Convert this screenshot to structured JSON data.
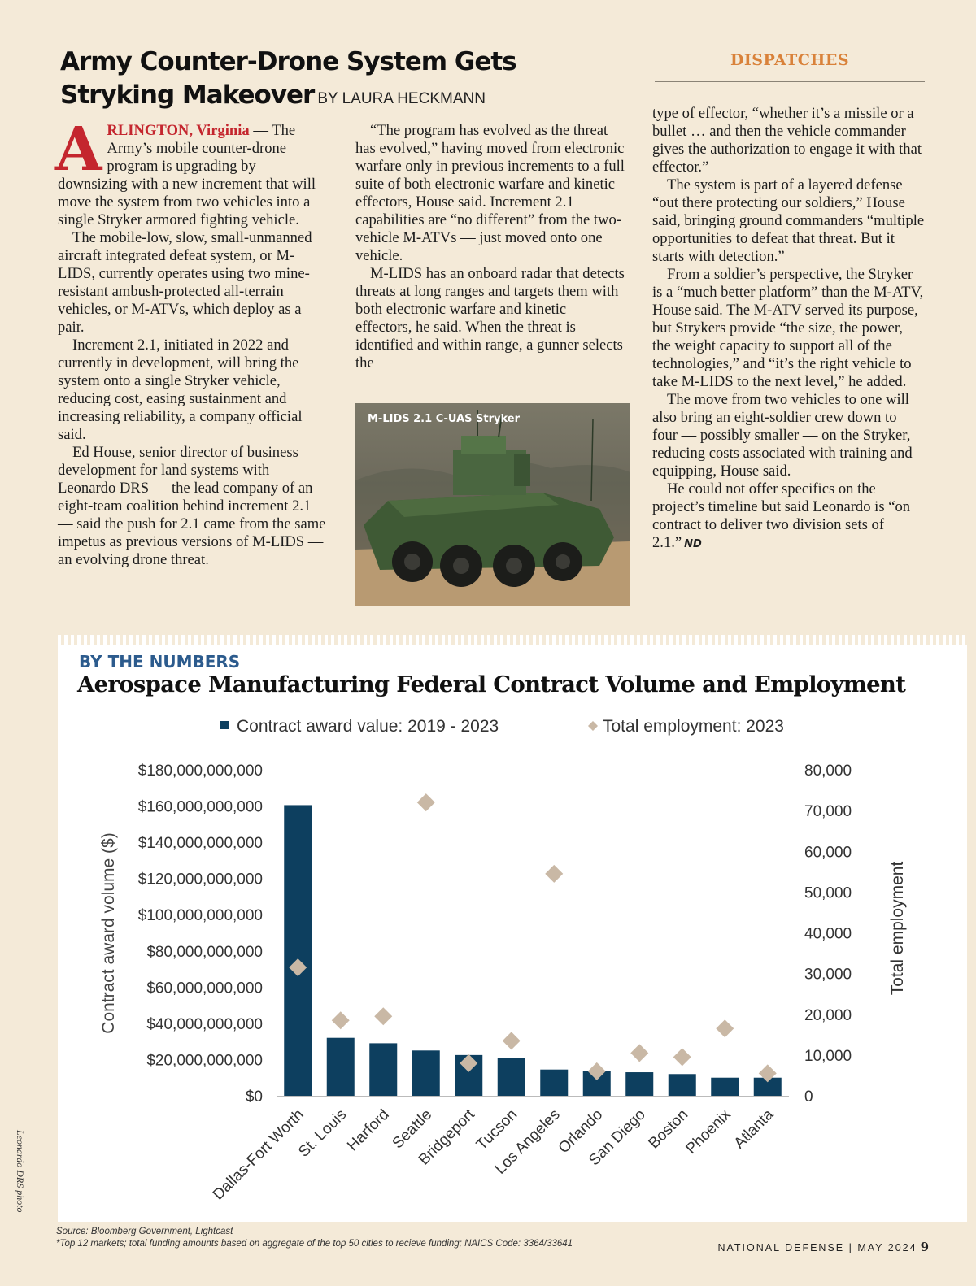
{
  "article": {
    "headline_line1": "Army Counter-Drone System Gets",
    "headline_line2": "Stryking Makeover",
    "byline": "BY LAURA HECKMANN",
    "section": "DISPATCHES",
    "dropcap": "A",
    "dateline": "RLINGTON, Virginia",
    "col1_p1": " — The Army’s mobile counter-drone program is upgrading by downsizing with a new increment that will move the system from two vehicles into a single Stryker armored fighting vehicle.",
    "col1_p2": "The mobile-low, slow, small-unmanned aircraft integrated defeat system, or M-LIDS, currently operates using two mine-resistant ambush-protected all-terrain vehicles, or M-ATVs, which deploy as a pair.",
    "col1_p3": "Increment 2.1, initiated in 2022 and currently in development, will bring the system onto a single Stryker vehicle, reducing cost, easing sustainment and increasing reliability, a company official said.",
    "col1_p4": "Ed House, senior director of business development for land systems with Leonardo DRS — the lead company of an eight-team coalition behind increment 2.1 — said the push for 2.1 came from the same impetus as previous versions of M-LIDS — an evolving drone threat.",
    "col2_p1": "“The program has evolved as the threat has evolved,” having moved from electronic warfare only in previous increments to a full suite of both electronic warfare and kinetic effectors, House said. Increment 2.1 capabilities are “no different” from the two-vehicle M-ATVs — just moved onto one vehicle.",
    "col2_p2": "M-LIDS has an onboard radar that detects threats at long ranges and targets them with both electronic warfare and kinetic effectors, he said. When the threat is identified and within range, a gunner selects the",
    "col3_p1": "type of effector, “whether it’s a missile or a bullet … and then the vehicle commander gives the authorization to engage it with that effector.”",
    "col3_p2": "The system is part of a layered defense “out there protecting our soldiers,” House said, bringing ground commanders “multiple opportunities to defeat that threat. But it starts with detection.”",
    "col3_p3": "From a soldier’s perspective, the Stryker is a “much better platform” than the M-ATV, House said. The M-ATV served its purpose, but Strykers provide “the size, the power, the weight capacity to support all of the technologies,” and “it’s the right vehicle to take M-LIDS to the next level,” he added.",
    "col3_p4": "The move from two vehicles to one will also bring an eight-soldier crew down to four — possibly smaller — on the Stryker, reducing costs associated with training and equipping, House said.",
    "col3_p5": "He could not offer specifics on the project’s timeline but said Leonardo is “on contract to deliver two division sets of 2.1.”",
    "endmark": "ND",
    "photo_caption": "M-LIDS 2.1 C-UAS Stryker",
    "photo_credit": "Leonardo DRS photo"
  },
  "by_the_numbers": {
    "kicker": "BY THE NUMBERS",
    "title": "Aerospace Manufacturing Federal Contract Volume and Employment",
    "source": "Source: Bloomberg Government, Lightcast",
    "footnote": "*Top 12 markets; total funding amounts based on aggregate of the top 50 cities to recieve funding; NAICS Code: 3364/33641"
  },
  "chart_data": {
    "type": "bar",
    "categories": [
      "Dallas-Fort Worth",
      "St. Louis",
      "Harford",
      "Seattle",
      "Bridgeport",
      "Tucson",
      "Los Angeles",
      "Orlando",
      "San Diego",
      "Boston",
      "Phoenix",
      "Atlanta"
    ],
    "series": [
      {
        "name": "Contract award value: 2019 - 2023",
        "type": "bar",
        "axis": "left",
        "color": "#0d3f5f",
        "values": [
          160500000000,
          32000000000,
          29000000000,
          25000000000,
          22500000000,
          21000000000,
          14500000000,
          13500000000,
          13000000000,
          12000000000,
          10000000000,
          10000000000
        ]
      },
      {
        "name": "Total employment: 2023",
        "type": "scatter",
        "axis": "right",
        "color": "#c9b8a5",
        "values": [
          31500,
          18500,
          19500,
          72000,
          8000,
          13500,
          54500,
          6000,
          10500,
          9500,
          16500,
          5500
        ]
      }
    ],
    "ylabel_left": "Contract award volume ($)",
    "ylabel_right": "Total employment",
    "ylim_left": [
      0,
      180000000000
    ],
    "ylim_right": [
      0,
      80000
    ],
    "yticks_left": [
      "$0",
      "$20,000,000,000",
      "$40,000,000,000",
      "$60,000,000,000",
      "$80,000,000,000",
      "$100,000,000,000",
      "$120,000,000,000",
      "$140,000,000,000",
      "$160,000,000,000",
      "$180,000,000,000"
    ],
    "yticks_right": [
      "0",
      "10,000",
      "20,000",
      "30,000",
      "40,000",
      "50,000",
      "60,000",
      "70,000",
      "80,000"
    ],
    "legend_position": "top",
    "grid": false
  },
  "folio": {
    "publication": "NATIONAL DEFENSE",
    "separator": "|",
    "issue": "MAY 2024",
    "page": "9"
  }
}
